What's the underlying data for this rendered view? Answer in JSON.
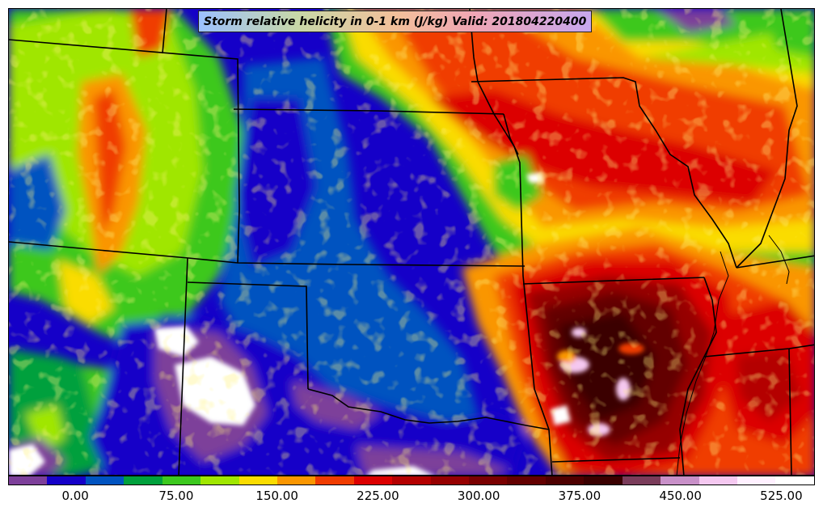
{
  "title": "Storm relative helicity in 0-1 km (J/kg) Valid: 201804220400",
  "colorbar": {
    "colors": [
      "#7d3f9a",
      "#1500c8",
      "#0053c0",
      "#00a03c",
      "#3cc81e",
      "#a0e600",
      "#fadc00",
      "#fa9600",
      "#f03c00",
      "#dc0000",
      "#b40000",
      "#960000",
      "#7a0000",
      "#640000",
      "#4e0000",
      "#3a0000",
      "#7a3c5a",
      "#c890c8",
      "#f5c8f0",
      "#fff0ff",
      "#ffffff"
    ],
    "ticks": [
      {
        "label": "0.00",
        "value": 0
      },
      {
        "label": "75.00",
        "value": 75
      },
      {
        "label": "150.00",
        "value": 150
      },
      {
        "label": "225.00",
        "value": 225
      },
      {
        "label": "300.00",
        "value": 300
      },
      {
        "label": "375.00",
        "value": 375
      },
      {
        "label": "450.00",
        "value": 450
      },
      {
        "label": "525.00",
        "value": 525
      }
    ]
  }
}
